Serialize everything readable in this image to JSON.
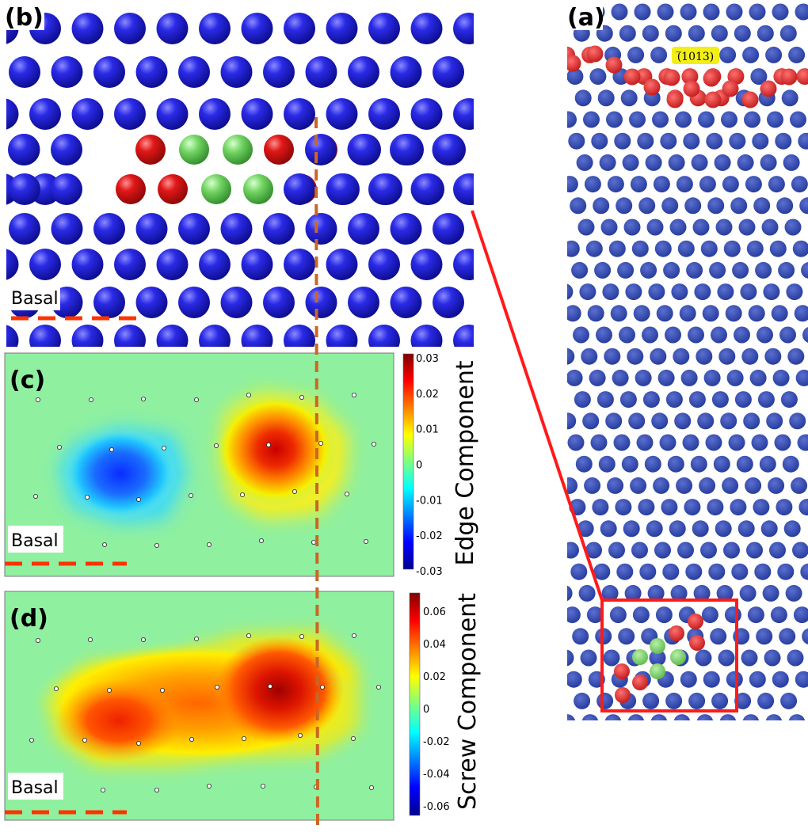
{
  "panels": {
    "a": {
      "label": "(a)",
      "plane_label": "(1̅0̅13)",
      "plane_text": "(̅1013)"
    },
    "b": {
      "label": "(b)",
      "basal": "Basal"
    },
    "c": {
      "label": "(c)",
      "basal": "Basal",
      "colorbar": {
        "title": "Edge Component",
        "ticks": [
          "0.03",
          "0.02",
          "0.01",
          "0",
          "-0.01",
          "-0.02",
          "-0.03"
        ]
      }
    },
    "d": {
      "label": "(d)",
      "basal": "Basal",
      "colorbar": {
        "title": "Screw Component",
        "ticks": [
          "0.06",
          "0.04",
          "0.02",
          "0",
          "-0.02",
          "-0.04",
          "-0.06"
        ]
      }
    }
  },
  "colors": {
    "matrix_atom": "#1f1fcc",
    "boundary_atom": "#dd1111",
    "core_atom": "#66cc55",
    "highlight": "#ff1a1a",
    "dash_basal": "#ff3300",
    "dash_vertical": "#cc6622"
  }
}
